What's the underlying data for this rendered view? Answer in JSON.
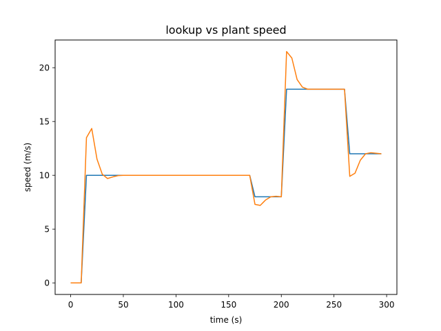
{
  "chart_data": {
    "type": "line",
    "title": "lookup vs plant speed",
    "xlabel": "time (s)",
    "ylabel": "speed (m/s)",
    "xlim": [
      -14.75,
      309.75
    ],
    "ylim": [
      -1.075,
      22.575
    ],
    "xticks": [
      0,
      50,
      100,
      150,
      200,
      250,
      300
    ],
    "yticks": [
      0,
      5,
      10,
      15,
      20
    ],
    "grid": false,
    "legend": "none",
    "series": [
      {
        "color": "#1f77b4",
        "points": [
          [
            0,
            0
          ],
          [
            10,
            0
          ],
          [
            15,
            10
          ],
          [
            170,
            10
          ],
          [
            175,
            8
          ],
          [
            200,
            8
          ],
          [
            205,
            18
          ],
          [
            260,
            18
          ],
          [
            265,
            12
          ],
          [
            295,
            12
          ]
        ]
      },
      {
        "color": "#ff7f0e",
        "points": [
          [
            0,
            0
          ],
          [
            10,
            0
          ],
          [
            15,
            13.5
          ],
          [
            20,
            14.35
          ],
          [
            25,
            11.5
          ],
          [
            30,
            10.1
          ],
          [
            35,
            9.7
          ],
          [
            40,
            9.85
          ],
          [
            45,
            9.97
          ],
          [
            50,
            10
          ],
          [
            170,
            10
          ],
          [
            175,
            7.3
          ],
          [
            180,
            7.2
          ],
          [
            185,
            7.7
          ],
          [
            190,
            8.0
          ],
          [
            195,
            8.05
          ],
          [
            200,
            8.0
          ],
          [
            205,
            21.5
          ],
          [
            210,
            20.9
          ],
          [
            215,
            18.9
          ],
          [
            220,
            18.2
          ],
          [
            225,
            18.0
          ],
          [
            260,
            18
          ],
          [
            265,
            9.9
          ],
          [
            270,
            10.2
          ],
          [
            275,
            11.4
          ],
          [
            280,
            12.0
          ],
          [
            285,
            12.1
          ],
          [
            290,
            12.05
          ],
          [
            295,
            12.0
          ]
        ]
      }
    ]
  }
}
